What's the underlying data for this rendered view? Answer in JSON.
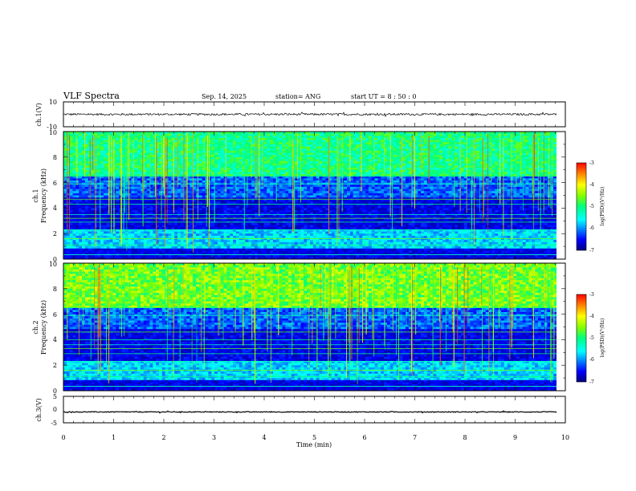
{
  "header": {
    "title": "VLF Spectra",
    "date": "Sep. 14, 2025",
    "station": "station= ANG",
    "start_ut": "start  UT =   8  : 50 : 0"
  },
  "colors": {
    "axis": "#000000",
    "spectrogram_low": "#00007f",
    "spectrogram_mid": "#00ff7f",
    "spectrogram_high": "#ff0000"
  },
  "chart_data": [
    {
      "id": "ch1-waveform",
      "type": "line",
      "ylabel": "ch.1(V)",
      "ylim": [
        -10,
        10
      ],
      "yticks": [
        "10",
        "-10"
      ],
      "xlim": [
        0,
        10
      ],
      "series": [
        {
          "name": "ch.1",
          "mean": 0,
          "noise_amplitude": 0.8
        }
      ]
    },
    {
      "id": "ch1-spectrogram",
      "type": "heatmap",
      "ylabel_line1": "ch.1",
      "ylabel_line2": "Frequency  (kHz)",
      "ylim": [
        0,
        10
      ],
      "yticks": [
        "0",
        "2",
        "4",
        "6",
        "8",
        "10"
      ],
      "xlim": [
        0,
        9.85
      ],
      "colorbar": {
        "label": "log(PSD)(V²/Hz)",
        "range": [
          -7,
          -3
        ],
        "ticks": [
          "-3",
          "-4",
          "-5",
          "-6",
          "-7"
        ]
      },
      "bands_khz": [
        0.35,
        1.1,
        1.6,
        2.3,
        2.9,
        3.2,
        3.5,
        4.3,
        4.7,
        5.9,
        6.5
      ]
    },
    {
      "id": "ch2-spectrogram",
      "type": "heatmap",
      "ylabel_line1": "ch.2",
      "ylabel_line2": "Frequency  (kHz)",
      "ylim": [
        0,
        10
      ],
      "yticks": [
        "0",
        "2",
        "4",
        "6",
        "8",
        "10"
      ],
      "xlim": [
        0,
        9.85
      ],
      "colorbar": {
        "label": "log(PSD)(V²/Hz)",
        "range": [
          -7,
          -3
        ],
        "ticks": [
          "-3",
          "-4",
          "-5",
          "-6",
          "-7"
        ]
      },
      "bands_khz": [
        0.35,
        1.1,
        1.6,
        2.3,
        2.9,
        3.3,
        3.6,
        4.0,
        4.6,
        5.9,
        6.5
      ]
    },
    {
      "id": "ch3-waveform",
      "type": "line",
      "ylabel": "ch.3(V)",
      "ylim": [
        -5,
        5
      ],
      "yticks": [
        "5",
        "0",
        "-5"
      ],
      "xlim": [
        0,
        10
      ],
      "series": [
        {
          "name": "ch.3",
          "mean": -0.9,
          "noise_amplitude": 0.15
        }
      ]
    }
  ],
  "x_axis": {
    "label": "Time  (min)",
    "ticks": [
      "0",
      "1",
      "2",
      "3",
      "4",
      "5",
      "6",
      "7",
      "8",
      "9",
      "10"
    ]
  }
}
